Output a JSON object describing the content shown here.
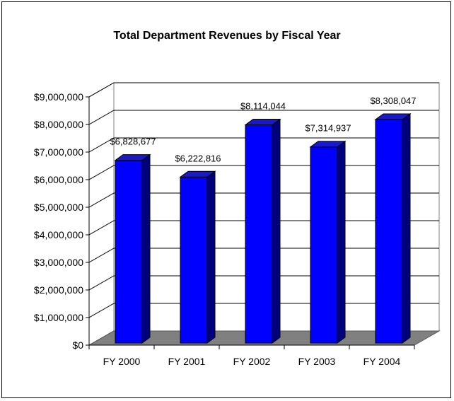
{
  "chart_data": {
    "type": "bar",
    "title": "Total Department Revenues by Fiscal Year",
    "categories": [
      "FY 2000",
      "FY 2001",
      "FY 2002",
      "FY 2003",
      "FY 2004"
    ],
    "values": [
      6828677,
      6222816,
      8114044,
      7314937,
      8308047
    ],
    "data_labels": [
      "$6,828,677",
      "$6,222,816",
      "$8,114,044",
      "$7,314,937",
      "$8,308,047"
    ],
    "y_ticks": [
      "$0",
      "$1,000,000",
      "$2,000,000",
      "$3,000,000",
      "$4,000,000",
      "$5,000,000",
      "$6,000,000",
      "$7,000,000",
      "$8,000,000",
      "$9,000,000"
    ],
    "ylim": [
      0,
      9000000
    ],
    "xlabel": "",
    "ylabel": "",
    "grid": true,
    "three_d": true,
    "colors": {
      "bar_front": "#0000FF",
      "bar_side": "#00007A",
      "bar_top": "#1A1AC8",
      "floor": "#808080",
      "wall": "#FFFFFF",
      "grid": "#000000"
    }
  }
}
